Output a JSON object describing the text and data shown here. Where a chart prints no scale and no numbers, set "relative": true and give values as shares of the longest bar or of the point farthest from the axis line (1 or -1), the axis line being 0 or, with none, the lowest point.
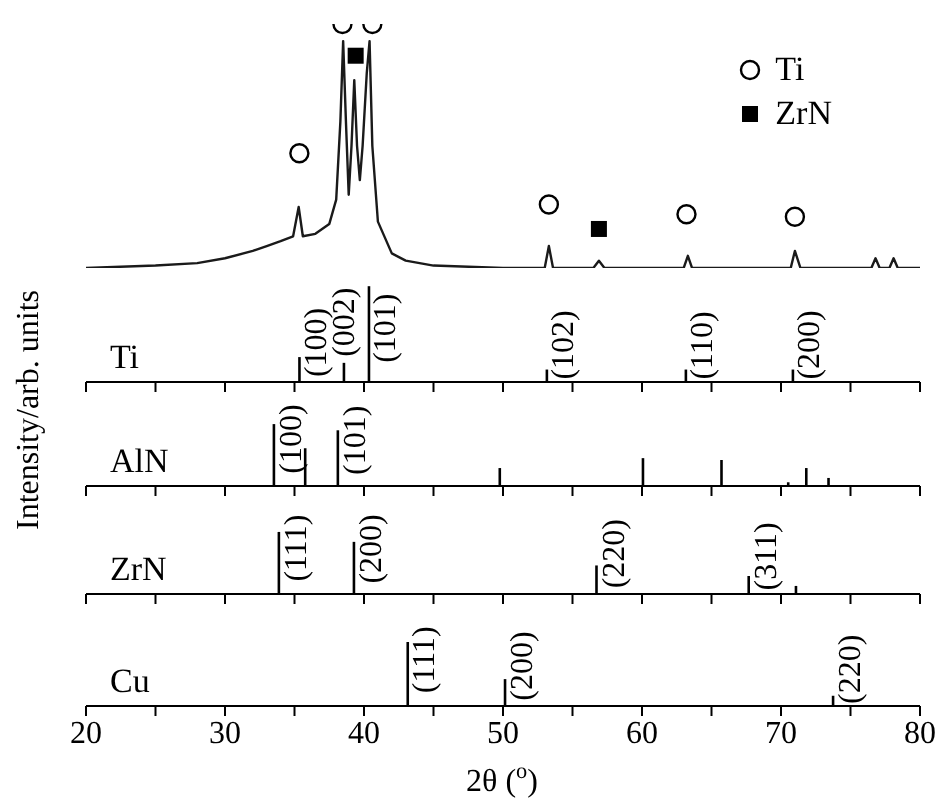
{
  "chart_data": [
    {
      "type": "line",
      "relative": true,
      "ylabel": "Intensity/arb. units",
      "xlim": [
        20,
        80
      ],
      "tick_labels": false,
      "legend": "top right",
      "series": [
        {
          "color": "#1a1a1a",
          "x": [
            20,
            25,
            28,
            30,
            32,
            33,
            34,
            34.9,
            35.3,
            35.6,
            36.5,
            37.5,
            38.0,
            38.3,
            38.5,
            38.7,
            38.9,
            39.1,
            39.3,
            39.5,
            39.7,
            39.9,
            40.2,
            40.4,
            40.6,
            41,
            42,
            43,
            45,
            50,
            53.0,
            53.3,
            53.6,
            56.5,
            56.9,
            57.3,
            63.0,
            63.3,
            63.6,
            70.7,
            71.0,
            71.4,
            76.5,
            76.8,
            77.1,
            77.8,
            78.1,
            78.4,
            80
          ],
          "values": [
            0,
            0.01,
            0.02,
            0.04,
            0.07,
            0.09,
            0.11,
            0.13,
            0.25,
            0.13,
            0.14,
            0.18,
            0.28,
            0.6,
            0.93,
            0.6,
            0.3,
            0.5,
            0.77,
            0.5,
            0.36,
            0.5,
            0.8,
            0.93,
            0.5,
            0.19,
            0.06,
            0.03,
            0.01,
            0,
            0,
            0.09,
            0,
            0,
            0.03,
            0,
            0,
            0.05,
            0,
            0,
            0.07,
            0,
            0,
            0.04,
            0,
            0,
            0.04,
            0,
            0
          ]
        },
        {
          "type": "scatter",
          "name": "Ti",
          "color": "#000000",
          "marker": "circle",
          "x": [
            35.35,
            38.45,
            40.6,
            53.3,
            63.2,
            71.0
          ],
          "values": [
            0.47,
            1,
            1,
            0.26,
            0.22,
            0.21
          ]
        },
        {
          "type": "scatter",
          "name": "ZrN",
          "color": "#000000",
          "marker": "square",
          "x": [
            39.4,
            56.9
          ],
          "values": [
            0.87,
            0.16
          ]
        }
      ]
    },
    {
      "type": "bar",
      "relative": true,
      "xlim": [
        20,
        80
      ],
      "xticks": [
        20,
        {
          "value": 25,
          "label": null
        },
        30,
        {
          "value": 35,
          "label": null
        },
        40,
        {
          "value": 45,
          "label": null
        },
        50,
        {
          "value": 55,
          "label": null
        },
        60,
        {
          "value": 65,
          "label": null
        },
        70,
        {
          "value": 75,
          "label": null
        },
        80
      ],
      "tick_labels": false,
      "color": "#000000",
      "x": [
        35.3,
        38.5,
        40.3,
        53.1,
        63.1,
        70.8
      ],
      "values": [
        0.26,
        0.2,
        1,
        0.13,
        0.13,
        0.13
      ],
      "annotations": [
        "Ti",
        {
          "text": "(100)",
          "x": 35.3,
          "y": 0.26
        },
        {
          "text": "(002)",
          "x": 38.5,
          "y": 0.2
        },
        {
          "text": "(101)",
          "x": 40.3,
          "y": 1
        },
        {
          "text": "(102)",
          "x": 53.1,
          "y": 0.13
        },
        {
          "text": "(110)",
          "x": 63.1,
          "y": 0.13
        },
        {
          "text": "(200)",
          "x": 70.8,
          "y": 0.13
        }
      ]
    },
    {
      "type": "bar",
      "relative": true,
      "xlim": [
        20,
        80
      ],
      "xticks": [
        20,
        {
          "value": 25,
          "label": null
        },
        30,
        {
          "value": 35,
          "label": null
        },
        40,
        {
          "value": 45,
          "label": null
        },
        50,
        {
          "value": 55,
          "label": null
        },
        60,
        {
          "value": 65,
          "label": null
        },
        70,
        {
          "value": 75,
          "label": null
        },
        80
      ],
      "tick_labels": false,
      "color": "#000000",
      "x": [
        33.5,
        35.75,
        38.1,
        49.75,
        60.05,
        65.7,
        70.5,
        71.8,
        73.4
      ],
      "values": [
        1,
        0.61,
        0.9,
        0.29,
        0.45,
        0.42,
        0.06,
        0.29,
        0.13
      ],
      "annotations": [
        "AlN",
        {
          "text": "(100)",
          "x": 33.5,
          "y": 1
        },
        {
          "text": "(101)",
          "x": 38.1,
          "y": 0.9
        }
      ]
    },
    {
      "type": "bar",
      "relative": true,
      "xlim": [
        20,
        80
      ],
      "xticks": [
        20,
        {
          "value": 25,
          "label": null
        },
        30,
        {
          "value": 35,
          "label": null
        },
        40,
        {
          "value": 45,
          "label": null
        },
        50,
        {
          "value": 55,
          "label": null
        },
        60,
        {
          "value": 65,
          "label": null
        },
        70,
        {
          "value": 75,
          "label": null
        },
        80
      ],
      "tick_labels": false,
      "color": "#000000",
      "x": [
        33.9,
        39.3,
        56.75,
        67.7,
        71.1
      ],
      "values": [
        1,
        0.84,
        0.46,
        0.29,
        0.13
      ],
      "annotations": [
        "ZrN",
        {
          "text": "(111)",
          "x": 33.9,
          "y": 1
        },
        {
          "text": "(200)",
          "x": 39.3,
          "y": 0.84
        },
        {
          "text": "(220)",
          "x": 56.75,
          "y": 0.46
        },
        {
          "text": "(311)",
          "x": 67.7,
          "y": 0.29
        }
      ]
    },
    {
      "type": "bar",
      "relative": true,
      "xlabel": "2θ ($^{o}$)",
      "xlim": [
        20,
        80
      ],
      "xticks": [
        20,
        {
          "value": 25,
          "label": null
        },
        30,
        {
          "value": 35,
          "label": null
        },
        40,
        {
          "value": 45,
          "label": null
        },
        50,
        {
          "value": 55,
          "label": null
        },
        60,
        {
          "value": 65,
          "label": null
        },
        70,
        {
          "value": 75,
          "label": null
        },
        80
      ],
      "tick_labels": "x",
      "color": "#000000",
      "x": [
        43.1,
        50.1,
        73.7
      ],
      "values": [
        1,
        0.42,
        0.16
      ],
      "annotations": [
        "Cu",
        {
          "text": "(111)",
          "x": 43.1,
          "y": 1
        },
        {
          "text": "(200)",
          "x": 50.1,
          "y": 0.42
        },
        {
          "text": "(220)",
          "x": 73.7,
          "y": 0.16
        }
      ]
    }
  ]
}
